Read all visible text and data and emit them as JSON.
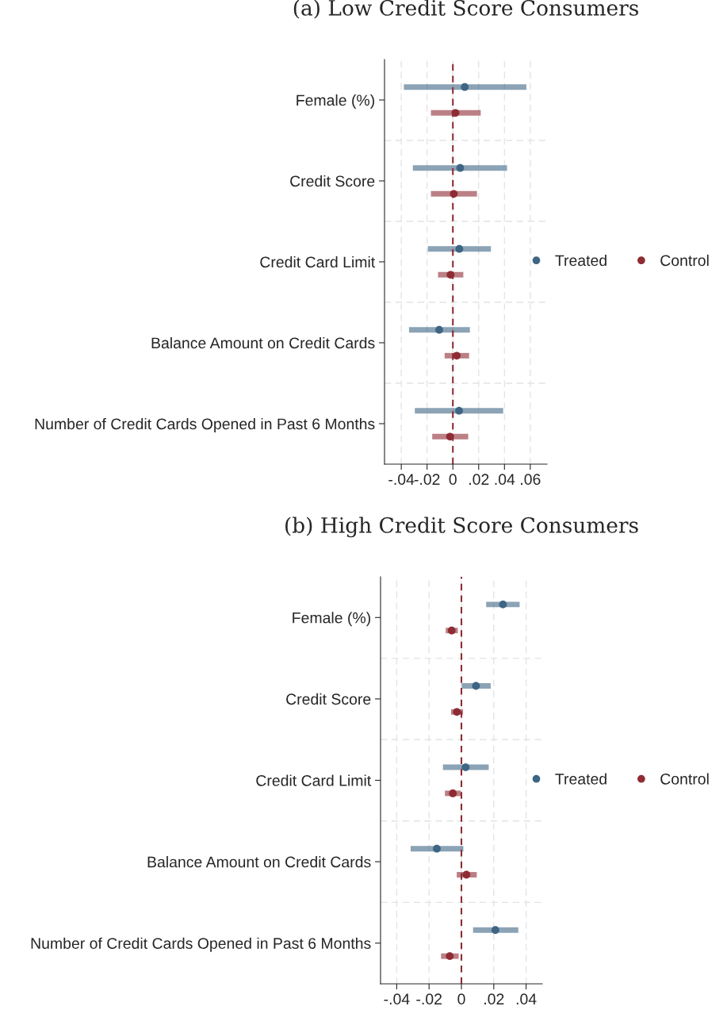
{
  "chart_data": [
    {
      "type": "scatter",
      "orientation": "horizontal",
      "title": "(a) Low Credit Score Consumers",
      "categories": [
        "Female (%)",
        "Credit Score",
        "Credit Card Limit",
        "Balance Amount on Credit Cards",
        "Number of Credit Cards Opened in Past 6 Months"
      ],
      "series": [
        {
          "name": "Treated",
          "color": "#3e6584",
          "values": [
            0.0092,
            0.0057,
            0.005,
            -0.0106,
            0.0048
          ],
          "errors": [
            [
              -0.038,
              0.057
            ],
            [
              -0.031,
              0.042
            ],
            [
              -0.0194,
              0.0295
            ],
            [
              -0.034,
              0.0132
            ],
            [
              -0.0295,
              0.039
            ]
          ]
        },
        {
          "name": "Control",
          "color": "#8e2c34",
          "values": [
            0.002,
            0.0007,
            -0.0018,
            0.003,
            -0.0022
          ],
          "errors": [
            [
              -0.017,
              0.0216
            ],
            [
              -0.017,
              0.0187
            ],
            [
              -0.0115,
              0.0081
            ],
            [
              -0.0064,
              0.0126
            ],
            [
              -0.016,
              0.0119
            ]
          ]
        }
      ],
      "xlim": [
        -0.053,
        0.073
      ],
      "xticks": [
        {
          "value": -0.04,
          "label": "-.04"
        },
        {
          "value": -0.02,
          "label": "-.02"
        },
        0,
        {
          "value": 0.02,
          "label": ".02"
        },
        {
          "value": 0.04,
          "label": ".04"
        },
        {
          "value": 0.06,
          "label": ".06"
        }
      ],
      "ref_lines": [
        {
          "axis": "x",
          "value": 0,
          "color": "#8e2c34",
          "line_style": "dashed"
        }
      ],
      "grid": true,
      "legend": "right",
      "marker": "circle"
    },
    {
      "type": "scatter",
      "orientation": "horizontal",
      "title": "(b) High Credit Score Consumers",
      "categories": [
        "Female (%)",
        "Credit Score",
        "Credit Card Limit",
        "Balance Amount on Credit Cards",
        "Number of Credit Cards Opened in Past 6 Months"
      ],
      "series": [
        {
          "name": "Treated",
          "color": "#3e6584",
          "values": [
            0.0257,
            0.009,
            0.0026,
            -0.0152,
            0.021
          ],
          "errors": [
            [
              0.0153,
              0.036
            ],
            [
              0.0002,
              0.0181
            ],
            [
              -0.0114,
              0.0169
            ],
            [
              -0.0314,
              0.0012
            ],
            [
              0.0072,
              0.0352
            ]
          ]
        },
        {
          "name": "Control",
          "color": "#8e2c34",
          "values": [
            -0.006,
            -0.0028,
            -0.0053,
            0.0031,
            -0.0072
          ],
          "errors": [
            [
              -0.0097,
              -0.0022
            ],
            [
              -0.0064,
              0.001
            ],
            [
              -0.0102,
              -0.0005
            ],
            [
              -0.0029,
              0.0095
            ],
            [
              -0.0126,
              -0.0017
            ]
          ]
        }
      ],
      "xlim": [
        -0.05,
        0.05
      ],
      "xticks": [
        {
          "value": -0.04,
          "label": "-.04"
        },
        {
          "value": -0.02,
          "label": "-.02"
        },
        0,
        {
          "value": 0.02,
          "label": ".02"
        },
        {
          "value": 0.04,
          "label": ".04"
        }
      ],
      "ref_lines": [
        {
          "axis": "x",
          "value": 0,
          "color": "#8e2c34",
          "line_style": "dashed"
        }
      ],
      "grid": true,
      "legend": "right",
      "marker": "circle"
    }
  ]
}
